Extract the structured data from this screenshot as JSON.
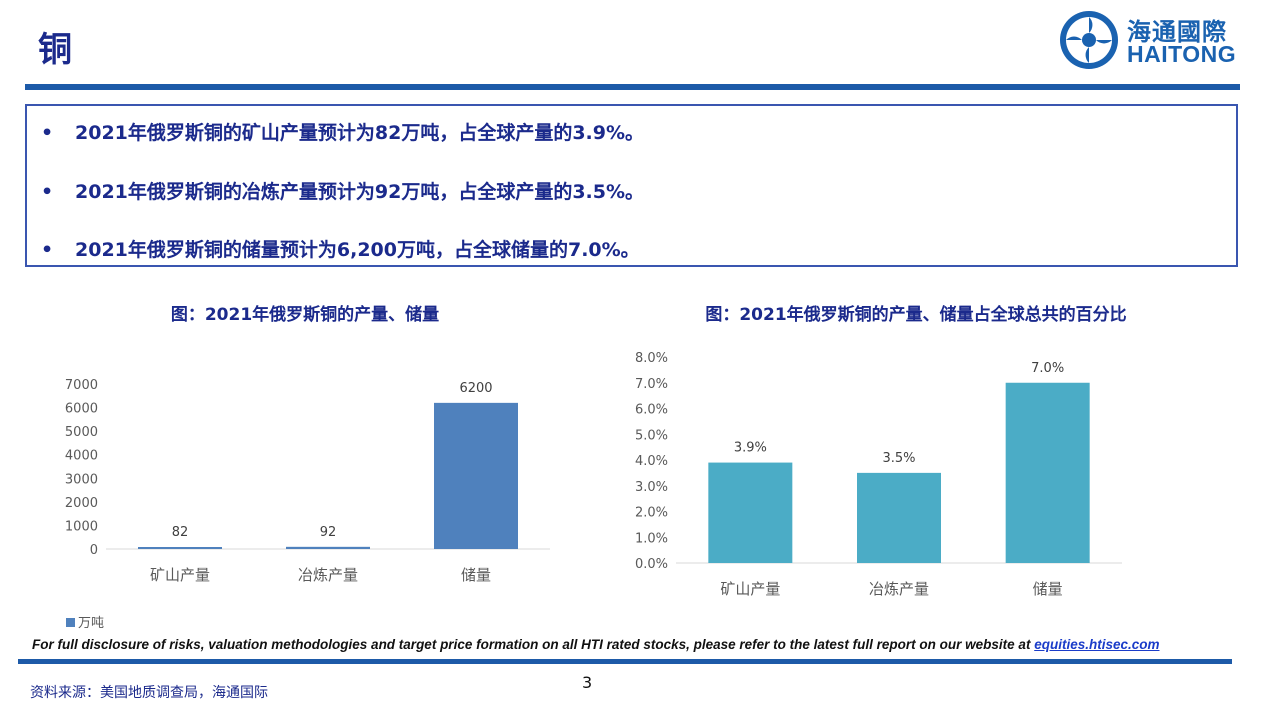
{
  "page": {
    "title": "铜",
    "logo_cn": "海通國際",
    "logo_en": "HAITONG",
    "page_number": "3",
    "source": "资料来源：美国地质调查局，海通国际",
    "disclosure_text": "For full disclosure of risks, valuation methodologies and target price formation on all HTI rated stocks, please refer to the latest full report on our website at ",
    "disclosure_link": "equities.htisec.com",
    "colors": {
      "brand_blue": "#1d5aa8",
      "navy_text": "#1b2a8c",
      "bar1": "#4f81bd",
      "bar2": "#4bacc6"
    }
  },
  "bullets": [
    {
      "marker": "•",
      "text": "2021年俄罗斯铜的矿山产量预计为82万吨，占全球产量的3.9%。"
    },
    {
      "marker": "•",
      "text": "2021年俄罗斯铜的冶炼产量预计为92万吨，占全球产量的3.5%。"
    },
    {
      "marker": "•",
      "text": "2021年俄罗斯铜的储量预计为6,200万吨，占全球储量的7.0%。"
    }
  ],
  "chart_data": [
    {
      "type": "bar",
      "title": "图：2021年俄罗斯铜的产量、储量",
      "categories": [
        "矿山产量",
        "冶炼产量",
        "储量"
      ],
      "series": [
        {
          "name": "万吨",
          "values": [
            82,
            92,
            6200
          ]
        }
      ],
      "data_labels": [
        "82",
        "92",
        "6200"
      ],
      "ylim": [
        0,
        7000
      ],
      "yticks": [
        "0",
        "1000",
        "2000",
        "3000",
        "4000",
        "5000",
        "6000",
        "7000"
      ],
      "grid": false,
      "legend": "bottom-left",
      "color": "#4f81bd"
    },
    {
      "type": "bar",
      "title": "图：2021年俄罗斯铜的产量、储量占全球总共的百分比",
      "categories": [
        "矿山产量",
        "冶炼产量",
        "储量"
      ],
      "series": [
        {
          "values": [
            3.9,
            3.5,
            7.0
          ]
        }
      ],
      "data_labels": [
        "3.9%",
        "3.5%",
        "7.0%"
      ],
      "ylim": [
        0,
        8
      ],
      "yticks": [
        "0.0%",
        "1.0%",
        "2.0%",
        "3.0%",
        "4.0%",
        "5.0%",
        "6.0%",
        "7.0%",
        "8.0%"
      ],
      "grid": false,
      "color": "#4bacc6"
    }
  ]
}
